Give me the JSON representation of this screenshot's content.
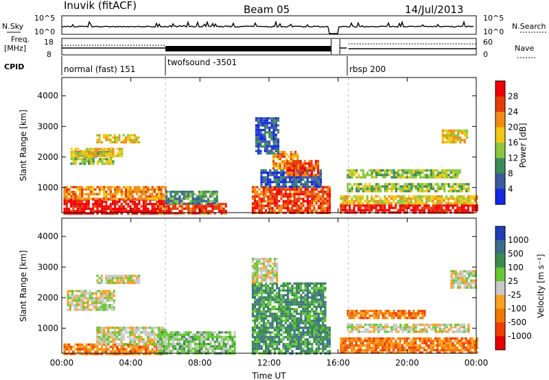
{
  "header": {
    "station": "Inuvik (fitACF)",
    "beam": "Beam 05",
    "date": "14/Jul/2013"
  },
  "top_panels": {
    "nsky_label": "N.Sky",
    "nsearch_label": "N.Search",
    "freq_label_1": "Freq.",
    "freq_label_2": "[MHz]",
    "nave_label": "Nave",
    "cpid_label": "CPID",
    "noise_ticks": [
      "10^5",
      "10^0"
    ],
    "freq_ticks": [
      "18",
      "8"
    ],
    "nave_ticks": [
      "60",
      "0"
    ],
    "cpid_segments": [
      {
        "label": "normal (fast) 151",
        "start_hour": 0,
        "end_hour": 6
      },
      {
        "label": "twofsound -3501",
        "start_hour": 6,
        "end_hour": 15.6
      },
      {
        "label": "rbsp 200",
        "start_hour": 16.6,
        "end_hour": 24
      }
    ]
  },
  "colors": {
    "power_scale": [
      "#1428e6",
      "#3c5aa0",
      "#3c8c5a",
      "#8cc83c",
      "#f0c814",
      "#f08c14",
      "#e63c0a",
      "#f00000"
    ],
    "velocity_scale": [
      "#1e3cb4",
      "#3c6e8c",
      "#3c8c50",
      "#64c832",
      "#c8c8c8",
      "#ffa01e",
      "#f07800",
      "#f03c00",
      "#e60000"
    ]
  },
  "chart_data": [
    {
      "type": "heatmap",
      "title": "Power",
      "xlabel": "",
      "ylabel": "Slant Range [km]",
      "x_ticks": [
        "00:00",
        "04:00",
        "08:00",
        "12:00",
        "16:00",
        "20:00",
        "00:00"
      ],
      "y_ticks": [
        "1000",
        "2000",
        "3000",
        "4000"
      ],
      "xlim_hours": [
        0,
        24
      ],
      "ylim_km": [
        180,
        4600
      ],
      "colorbar_label": "Power [dB]",
      "colorbar_ticks": [
        "4",
        "8",
        "12",
        "16",
        "20",
        "24",
        "28"
      ],
      "colorbar_range": [
        0,
        32
      ],
      "data_gap_hours": [
        15.6,
        16.1
      ],
      "regions": [
        {
          "x": [
            0.1,
            6.0
          ],
          "y": [
            180,
            650
          ],
          "level": 7
        },
        {
          "x": [
            0.1,
            6.0
          ],
          "y": [
            650,
            1050
          ],
          "level": 5
        },
        {
          "x": [
            0.5,
            3.0
          ],
          "y": [
            1800,
            2200
          ],
          "level": 3
        },
        {
          "x": [
            0.5,
            3.5
          ],
          "y": [
            2050,
            2300
          ],
          "level": 4
        },
        {
          "x": [
            2.0,
            4.5
          ],
          "y": [
            2450,
            2750
          ],
          "level": 4
        },
        {
          "x": [
            5.5,
            9.5
          ],
          "y": [
            180,
            500
          ],
          "level": 6
        },
        {
          "x": [
            6.0,
            9.0
          ],
          "y": [
            500,
            900
          ],
          "level": 2
        },
        {
          "x": [
            11.0,
            15.5
          ],
          "y": [
            180,
            1050
          ],
          "level": 6
        },
        {
          "x": [
            11.5,
            15.0
          ],
          "y": [
            1050,
            1600
          ],
          "level": 1
        },
        {
          "x": [
            12.2,
            13.6
          ],
          "y": [
            1600,
            2200
          ],
          "level": 5
        },
        {
          "x": [
            13.0,
            14.8
          ],
          "y": [
            1400,
            1900
          ],
          "level": 6
        },
        {
          "x": [
            11.2,
            12.5
          ],
          "y": [
            2100,
            3300
          ],
          "level": 1
        },
        {
          "x": [
            16.1,
            24.0
          ],
          "y": [
            180,
            450
          ],
          "level": 7
        },
        {
          "x": [
            16.1,
            24.0
          ],
          "y": [
            450,
            750
          ],
          "level": 4
        },
        {
          "x": [
            16.5,
            23.5
          ],
          "y": [
            900,
            1150
          ],
          "level": 3
        },
        {
          "x": [
            16.5,
            23.0
          ],
          "y": [
            1350,
            1600
          ],
          "level": 3
        },
        {
          "x": [
            22.0,
            23.5
          ],
          "y": [
            2500,
            2900
          ],
          "level": 4
        }
      ]
    },
    {
      "type": "heatmap",
      "title": "Velocity",
      "xlabel": "Time UT",
      "ylabel": "Slant Range [km]",
      "x_ticks": [
        "00:00",
        "04:00",
        "08:00",
        "12:00",
        "16:00",
        "20:00",
        "00:00"
      ],
      "y_ticks": [
        "1000",
        "2000",
        "3000",
        "4000"
      ],
      "xlim_hours": [
        0,
        24
      ],
      "ylim_km": [
        180,
        4600
      ],
      "colorbar_label": "Velocity [m s⁻¹]",
      "colorbar_ticks": [
        "1000",
        "500",
        "100",
        "25",
        "-25",
        "-100",
        "-500",
        "-1000"
      ],
      "data_gap_hours": [
        15.6,
        16.1
      ],
      "regions": [
        {
          "x": [
            0.1,
            6.0
          ],
          "y": [
            180,
            500
          ],
          "level": 6
        },
        {
          "x": [
            2.0,
            6.0
          ],
          "y": [
            500,
            1050
          ],
          "level": 4
        },
        {
          "x": [
            0.3,
            3.0
          ],
          "y": [
            1600,
            2250
          ],
          "level": 4
        },
        {
          "x": [
            2.0,
            4.5
          ],
          "y": [
            2450,
            2750
          ],
          "level": 4
        },
        {
          "x": [
            5.5,
            10.0
          ],
          "y": [
            180,
            900
          ],
          "level": 3
        },
        {
          "x": [
            11.0,
            15.5
          ],
          "y": [
            180,
            1050
          ],
          "level": 2
        },
        {
          "x": [
            11.0,
            15.2
          ],
          "y": [
            1050,
            2500
          ],
          "level": 2
        },
        {
          "x": [
            11.0,
            12.5
          ],
          "y": [
            2500,
            3300
          ],
          "level": 4
        },
        {
          "x": [
            16.1,
            24.0
          ],
          "y": [
            180,
            700
          ],
          "level": 6
        },
        {
          "x": [
            16.5,
            21.0
          ],
          "y": [
            1300,
            1600
          ],
          "level": 6
        },
        {
          "x": [
            16.5,
            23.5
          ],
          "y": [
            850,
            1150
          ],
          "level": 4
        },
        {
          "x": [
            22.5,
            24.0
          ],
          "y": [
            2300,
            2900
          ],
          "level": 4
        }
      ]
    }
  ]
}
